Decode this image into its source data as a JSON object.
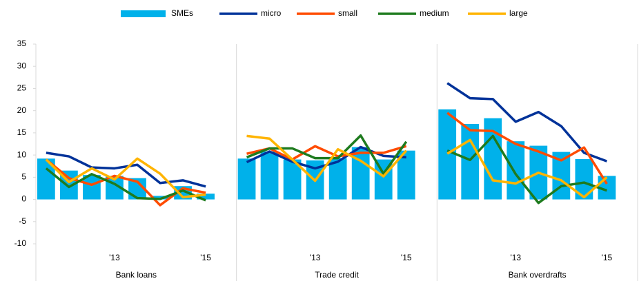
{
  "chart_data": {
    "type": "bar-line-panels",
    "panels": [
      "Bank loans",
      "Trade credit",
      "Bank overdrafts"
    ],
    "categories": [
      null,
      null,
      null,
      "'13",
      null,
      null,
      null,
      "'15"
    ],
    "ylim": [
      -10,
      35
    ],
    "yticks": [
      -10,
      -5,
      0,
      5,
      10,
      15,
      20,
      25,
      30,
      35
    ],
    "series": [
      {
        "name": "SMEs",
        "color": "#00b1ea",
        "type": "bar",
        "values": [
          [
            9.2,
            6.5,
            5.5,
            5.3,
            4.8,
            0.8,
            3.0,
            1.3
          ],
          [
            9.2,
            10.8,
            9.0,
            8.8,
            9.3,
            11.8,
            9.0,
            11.0
          ],
          [
            20.3,
            17.0,
            18.3,
            13.1,
            12.1,
            10.7,
            9.1,
            5.3
          ]
        ]
      },
      {
        "name": "micro",
        "color": "#003299",
        "type": "line",
        "values": [
          [
            10.5,
            9.7,
            7.2,
            7.0,
            7.8,
            3.7,
            4.3,
            2.9
          ],
          [
            8.4,
            10.8,
            8.5,
            7.0,
            8.5,
            11.8,
            9.8,
            9.5
          ],
          [
            26.2,
            22.8,
            22.6,
            17.5,
            19.7,
            16.5,
            10.5,
            8.6
          ]
        ]
      },
      {
        "name": "small",
        "color": "#ff4b00",
        "type": "line",
        "values": [
          [
            9.0,
            4.8,
            3.3,
            5.3,
            4.0,
            -1.3,
            2.5,
            1.5
          ],
          [
            10.3,
            11.5,
            9.0,
            12.0,
            9.7,
            10.5,
            10.5,
            12.0
          ],
          [
            19.5,
            15.6,
            15.4,
            12.5,
            10.8,
            8.8,
            11.7,
            3.5
          ]
        ]
      },
      {
        "name": "medium",
        "color": "#1e7b1e",
        "type": "line",
        "values": [
          [
            7.0,
            2.8,
            5.7,
            3.5,
            0.3,
            0.1,
            2.0,
            -0.2
          ],
          [
            9.5,
            11.5,
            11.5,
            9.3,
            9.3,
            14.4,
            5.8,
            13.0
          ],
          [
            11.0,
            8.9,
            14.3,
            5.7,
            -0.8,
            3.0,
            3.8,
            2.0
          ]
        ]
      },
      {
        "name": "large",
        "color": "#ffb400",
        "type": "line",
        "values": [
          [
            9.0,
            3.9,
            7.0,
            4.5,
            9.2,
            5.8,
            0.5,
            1.1
          ],
          [
            14.3,
            13.7,
            9.0,
            4.2,
            11.3,
            8.7,
            5.2,
            11.0
          ],
          [
            10.3,
            13.4,
            4.3,
            3.6,
            6.0,
            4.3,
            0.5,
            5.0
          ]
        ]
      }
    ]
  }
}
